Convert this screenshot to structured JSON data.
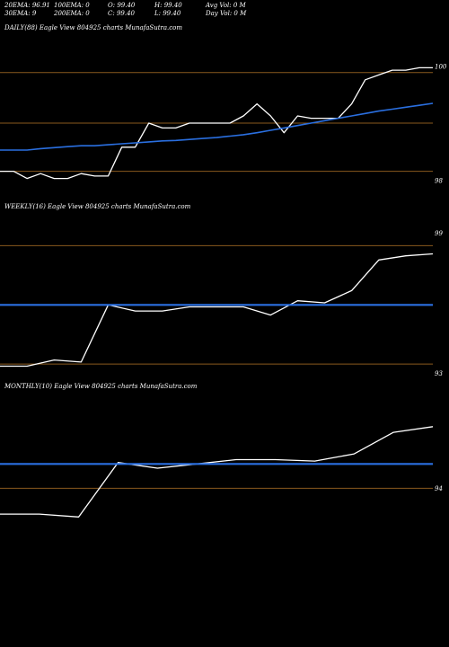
{
  "header": {
    "ema20": "20EMA: 96.91",
    "ema100": "100EMA: 0",
    "open": "O: 99.40",
    "high": "H: 99.40",
    "avg_vol": "Avg Vol: 0  M",
    "ema30": "30EMA: 9",
    "ema200": "200EMA: 0",
    "close": "C: 99.40",
    "low": "L: 99.40",
    "day_vol": "Day Vol: 0  M"
  },
  "chart_data": [
    {
      "type": "line",
      "panel_label": "DAILY(88) Eagle  View  804925 charts MunafaSutra.com",
      "ylim": [
        97.6,
        100.4
      ],
      "ticks": [
        {
          "value": 100,
          "label": "100"
        },
        {
          "value": 98,
          "label": "98"
        }
      ],
      "hlines": [
        {
          "value": 100.05
        },
        {
          "value": 99.0
        },
        {
          "value": 98.0
        }
      ],
      "series": [
        {
          "color": "#ffffff",
          "values": [
            98.0,
            98.0,
            97.85,
            97.95,
            97.85,
            97.85,
            97.95,
            97.9,
            97.9,
            98.5,
            98.5,
            99.0,
            98.9,
            98.9,
            99.0,
            99.0,
            99.0,
            99.0,
            99.15,
            99.4,
            99.15,
            98.8,
            99.15,
            99.1,
            99.1,
            99.1,
            99.4,
            99.9,
            100.0,
            100.1,
            100.1,
            100.15,
            100.15
          ]
        },
        {
          "color": "#2a6fe0",
          "values": [
            98.44,
            98.44,
            98.44,
            98.47,
            98.49,
            98.51,
            98.53,
            98.53,
            98.55,
            98.57,
            98.59,
            98.61,
            98.63,
            98.64,
            98.66,
            98.68,
            98.7,
            98.73,
            98.76,
            98.8,
            98.85,
            98.9,
            98.95,
            99.0,
            99.05,
            99.1,
            99.15,
            99.2,
            99.25,
            99.29,
            99.33,
            99.37,
            99.41
          ]
        }
      ]
    },
    {
      "type": "line",
      "panel_label": "WEEKLY(16) Eagle  View  804925 charts MunafaSutra.com",
      "ylim": [
        92.7,
        99.3
      ],
      "ticks": [
        {
          "value": 99,
          "label": "99"
        },
        {
          "value": 93,
          "label": "93"
        }
      ],
      "hlines": [
        {
          "value": 98.8
        },
        {
          "value": 93.0
        }
      ],
      "series": [
        {
          "color": "#ffffff",
          "values": [
            92.9,
            92.9,
            93.2,
            93.1,
            95.9,
            95.6,
            95.6,
            95.8,
            95.8,
            95.8,
            95.4,
            96.1,
            96.0,
            96.6,
            98.1,
            98.3,
            98.4
          ]
        },
        {
          "color": "#2a6fe0",
          "values": [
            95.9,
            95.9,
            95.9,
            95.9,
            95.9,
            95.9,
            95.9,
            95.9,
            95.9,
            95.9,
            95.9,
            95.9,
            95.9,
            95.9,
            95.9,
            95.9,
            95.9
          ]
        }
      ]
    },
    {
      "type": "line",
      "panel_label": "MONTHLY(10) Eagle  View  804925 charts MunafaSutra.com",
      "ylim": [
        90.3,
        99.7
      ],
      "ticks": [
        {
          "value": 94,
          "label": "94"
        }
      ],
      "hlines": [
        {
          "value": 94.6
        }
      ],
      "series": [
        {
          "color": "#ffffff",
          "values": [
            92.8,
            92.8,
            92.6,
            96.4,
            96.0,
            96.3,
            96.6,
            96.6,
            96.5,
            97.0,
            98.5,
            98.9
          ]
        },
        {
          "color": "#2a6fe0",
          "values": [
            96.3,
            96.3,
            96.3,
            96.3,
            96.3,
            96.3,
            96.3,
            96.3,
            96.3,
            96.3,
            96.3,
            96.3
          ]
        }
      ]
    }
  ]
}
